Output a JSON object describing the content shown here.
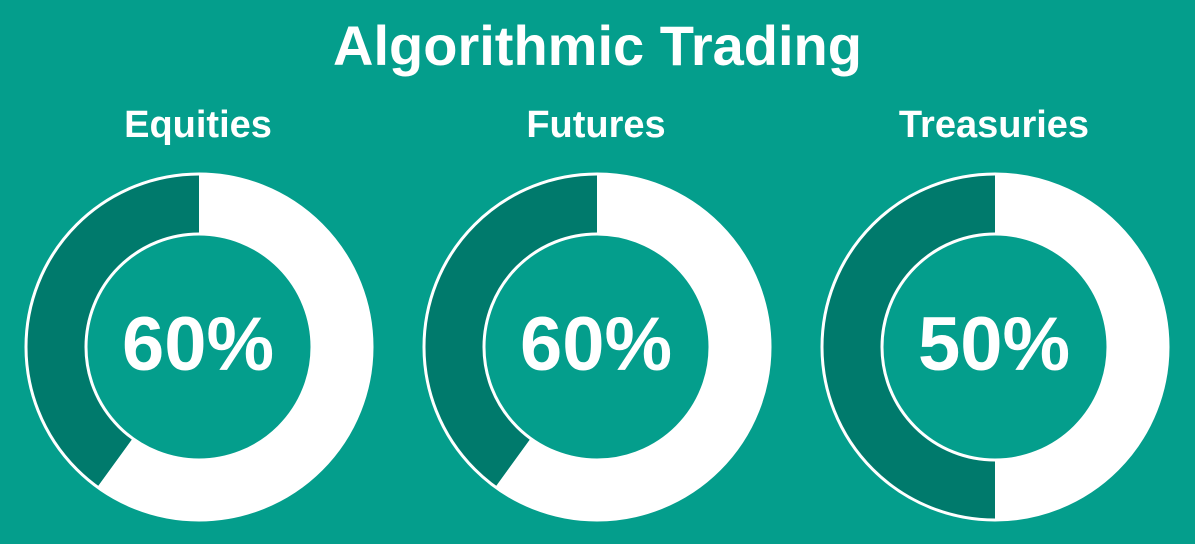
{
  "title": "Algorithmic Trading",
  "colors": {
    "background": "#049e8c",
    "filled": "#ffffff",
    "remainder": "#007a6c",
    "text": "#ffffff"
  },
  "chart_data": [
    {
      "type": "pie",
      "title": "Equities",
      "value_label": "60%",
      "slices": [
        {
          "value": 60
        },
        {
          "value": 40
        }
      ]
    },
    {
      "type": "pie",
      "title": "Futures",
      "value_label": "60%",
      "slices": [
        {
          "value": 60
        },
        {
          "value": 40
        }
      ]
    },
    {
      "type": "pie",
      "title": "Treasuries",
      "value_label": "50%",
      "slices": [
        {
          "value": 50
        },
        {
          "value": 50
        }
      ]
    }
  ]
}
